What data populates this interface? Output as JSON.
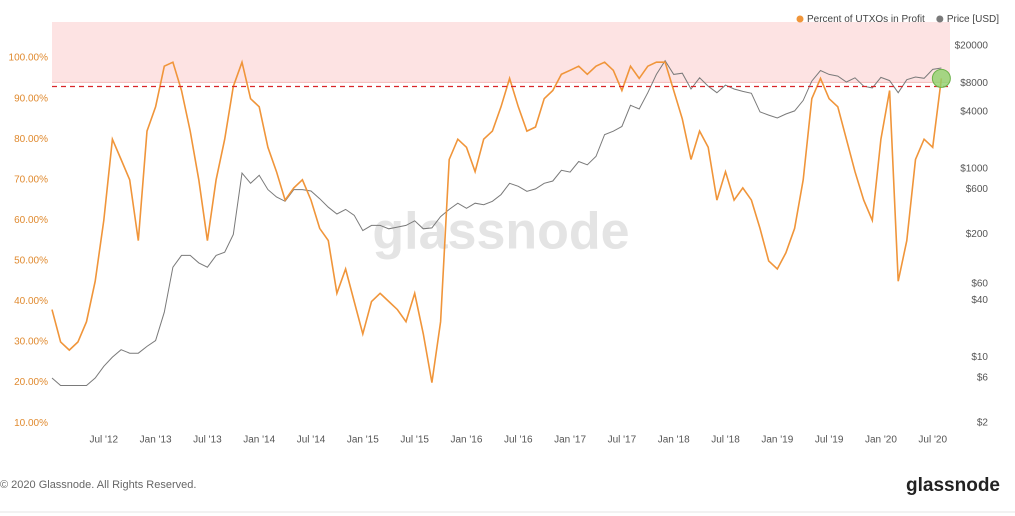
{
  "chart_data": {
    "type": "line",
    "watermark": "glassnode",
    "x": [
      "2012-01",
      "2012-02",
      "2012-03",
      "2012-04",
      "2012-05",
      "2012-06",
      "2012-07",
      "2012-08",
      "2012-09",
      "2012-10",
      "2012-11",
      "2012-12",
      "2013-01",
      "2013-02",
      "2013-03",
      "2013-04",
      "2013-05",
      "2013-06",
      "2013-07",
      "2013-08",
      "2013-09",
      "2013-10",
      "2013-11",
      "2013-12",
      "2014-01",
      "2014-02",
      "2014-03",
      "2014-04",
      "2014-05",
      "2014-06",
      "2014-07",
      "2014-08",
      "2014-09",
      "2014-10",
      "2014-11",
      "2014-12",
      "2015-01",
      "2015-02",
      "2015-03",
      "2015-04",
      "2015-05",
      "2015-06",
      "2015-07",
      "2015-08",
      "2015-09",
      "2015-10",
      "2015-11",
      "2015-12",
      "2016-01",
      "2016-02",
      "2016-03",
      "2016-04",
      "2016-05",
      "2016-06",
      "2016-07",
      "2016-08",
      "2016-09",
      "2016-10",
      "2016-11",
      "2016-12",
      "2017-01",
      "2017-02",
      "2017-03",
      "2017-04",
      "2017-05",
      "2017-06",
      "2017-07",
      "2017-08",
      "2017-09",
      "2017-10",
      "2017-11",
      "2017-12",
      "2018-01",
      "2018-02",
      "2018-03",
      "2018-04",
      "2018-05",
      "2018-06",
      "2018-07",
      "2018-08",
      "2018-09",
      "2018-10",
      "2018-11",
      "2018-12",
      "2019-01",
      "2019-02",
      "2019-03",
      "2019-04",
      "2019-05",
      "2019-06",
      "2019-07",
      "2019-08",
      "2019-09",
      "2019-10",
      "2019-11",
      "2019-12",
      "2020-01",
      "2020-02",
      "2020-03",
      "2020-04",
      "2020-05",
      "2020-06",
      "2020-07",
      "2020-08"
    ],
    "series": [
      {
        "name": "Percent of UTXOs in Profit",
        "color": "#f0953a",
        "values": [
          38,
          30,
          28,
          30,
          35,
          45,
          60,
          80,
          75,
          70,
          55,
          82,
          88,
          98,
          99,
          92,
          82,
          70,
          55,
          70,
          80,
          93,
          99,
          90,
          88,
          78,
          72,
          65,
          68,
          70,
          65,
          58,
          55,
          42,
          48,
          40,
          32,
          40,
          42,
          40,
          38,
          35,
          42,
          32,
          20,
          35,
          75,
          80,
          78,
          72,
          80,
          82,
          88,
          95,
          88,
          82,
          83,
          90,
          92,
          96,
          97,
          98,
          96,
          98,
          99,
          97,
          92,
          98,
          95,
          98,
          99,
          99,
          92,
          85,
          75,
          82,
          78,
          65,
          72,
          65,
          68,
          65,
          58,
          50,
          48,
          52,
          58,
          70,
          90,
          95,
          90,
          88,
          80,
          72,
          65,
          60,
          80,
          92,
          45,
          55,
          75,
          80,
          78,
          95
        ]
      },
      {
        "name": "Price [USD]",
        "color": "#7a7a7a",
        "axis": "y2",
        "values": [
          6,
          5,
          5,
          5,
          5,
          6,
          8,
          10,
          12,
          11,
          11,
          13,
          15,
          30,
          90,
          120,
          120,
          100,
          90,
          120,
          130,
          200,
          900,
          700,
          850,
          600,
          500,
          450,
          600,
          600,
          580,
          480,
          390,
          330,
          370,
          320,
          220,
          250,
          250,
          230,
          240,
          250,
          280,
          230,
          235,
          310,
          370,
          430,
          380,
          430,
          415,
          450,
          530,
          700,
          650,
          575,
          610,
          700,
          740,
          960,
          920,
          1190,
          1100,
          1350,
          2300,
          2500,
          2800,
          4700,
          4300,
          6400,
          10000,
          14000,
          10000,
          10300,
          7000,
          9200,
          7500,
          6400,
          7700,
          7000,
          6600,
          6300,
          4000,
          3700,
          3450,
          3800,
          4100,
          5300,
          8500,
          11000,
          10000,
          9600,
          8300,
          9200,
          7500,
          7200,
          9300,
          8600,
          6400,
          8800,
          9400,
          9100,
          11300,
          11700
        ]
      }
    ],
    "xlim": [
      "2012-01",
      "2020-09"
    ],
    "xticks": [
      {
        "value": "2012-07",
        "label": "Jul '12"
      },
      {
        "value": "2013-01",
        "label": "Jan '13"
      },
      {
        "value": "2013-07",
        "label": "Jul '13"
      },
      {
        "value": "2014-01",
        "label": "Jan '14"
      },
      {
        "value": "2014-07",
        "label": "Jul '14"
      },
      {
        "value": "2015-01",
        "label": "Jan '15"
      },
      {
        "value": "2015-07",
        "label": "Jul '15"
      },
      {
        "value": "2016-01",
        "label": "Jan '16"
      },
      {
        "value": "2016-07",
        "label": "Jul '16"
      },
      {
        "value": "2017-01",
        "label": "Jan '17"
      },
      {
        "value": "2017-07",
        "label": "Jul '17"
      },
      {
        "value": "2018-01",
        "label": "Jan '18"
      },
      {
        "value": "2018-07",
        "label": "Jul '18"
      },
      {
        "value": "2019-01",
        "label": "Jan '19"
      },
      {
        "value": "2019-07",
        "label": "Jul '19"
      },
      {
        "value": "2020-01",
        "label": "Jan '20"
      },
      {
        "value": "2020-07",
        "label": "Jul '20"
      }
    ],
    "ylim": [
      8.8,
      108.9
    ],
    "yticks": [
      {
        "value": 10,
        "label": "10.00%"
      },
      {
        "value": 20,
        "label": "20.00%"
      },
      {
        "value": 30,
        "label": "30.00%"
      },
      {
        "value": 40,
        "label": "40.00%"
      },
      {
        "value": 50,
        "label": "50.00%"
      },
      {
        "value": 60,
        "label": "60.00%"
      },
      {
        "value": 70,
        "label": "70.00%"
      },
      {
        "value": 80,
        "label": "80.00%"
      },
      {
        "value": 90,
        "label": "90.00%"
      },
      {
        "value": 100,
        "label": "100.00%"
      }
    ],
    "y2lim": [
      1.77,
      36000
    ],
    "y2_log": true,
    "y2ticks": [
      {
        "value": 2,
        "label": "$2"
      },
      {
        "value": 6,
        "label": "$6"
      },
      {
        "value": 10,
        "label": "$10"
      },
      {
        "value": 40,
        "label": "$40"
      },
      {
        "value": 60,
        "label": "$60"
      },
      {
        "value": 200,
        "label": "$200"
      },
      {
        "value": 600,
        "label": "$600"
      },
      {
        "value": 1000,
        "label": "$1000"
      },
      {
        "value": 4000,
        "label": "$4000"
      },
      {
        "value": 8000,
        "label": "$8000"
      },
      {
        "value": 20000,
        "label": "$20000"
      }
    ],
    "highlight_band": [
      94,
      108.9
    ],
    "band_color": "#fde3e3",
    "threshold": 93,
    "threshold_color": "#d9262a",
    "marker_color": "#8fd16a",
    "legend": "top-right"
  },
  "footer": {
    "copyright": "© 2020 Glassnode. All Rights Reserved.",
    "logo": "glassnode"
  }
}
